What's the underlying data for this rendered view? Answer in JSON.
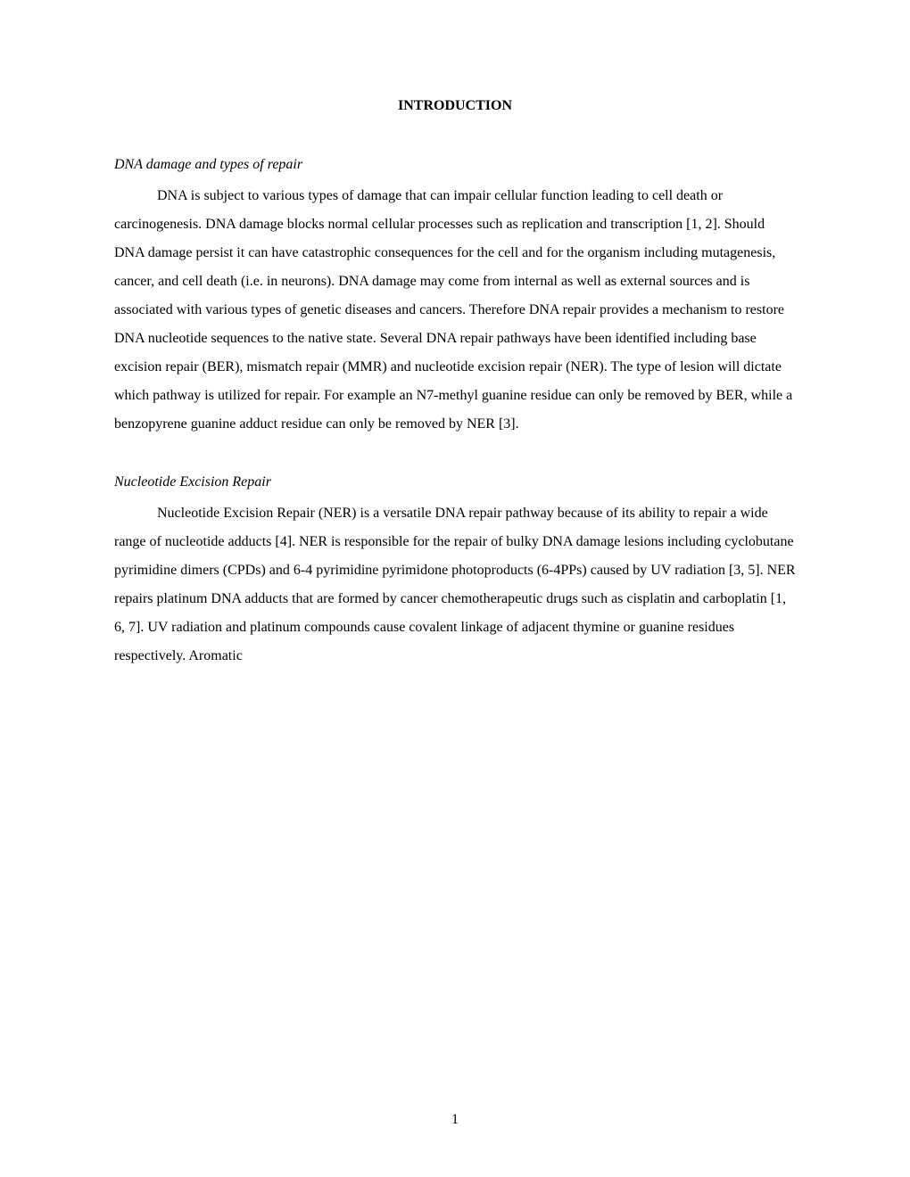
{
  "title": "INTRODUCTION",
  "sections": [
    {
      "heading": "DNA damage and types of repair",
      "paragraph": "DNA is subject to various types of damage that can impair cellular function leading to cell death or carcinogenesis.  DNA damage blocks normal cellular processes such as replication and transcription [1, 2].  Should DNA damage persist it can have catastrophic consequences for the cell and for the organism including mutagenesis, cancer, and cell death (i.e. in neurons).  DNA damage may come from internal as well as external sources and is associated with various types of genetic diseases and cancers.  Therefore DNA repair provides a mechanism to restore DNA nucleotide sequences to the native state.  Several DNA repair pathways have been identified including base excision repair (BER), mismatch repair (MMR) and nucleotide excision repair (NER).  The type of lesion will dictate which pathway is utilized for repair.  For example an N7-methyl guanine residue can only be removed by BER, while a benzopyrene guanine adduct residue can only be removed by NER [3]."
    },
    {
      "heading": "Nucleotide Excision Repair",
      "paragraph": " Nucleotide Excision Repair (NER) is a versatile DNA repair pathway because of its ability to repair a wide range of nucleotide adducts [4].  NER is responsible for the repair of bulky DNA damage lesions including cyclobutane pyrimidine dimers (CPDs) and 6-4 pyrimidine pyrimidone photoproducts (6-4PPs) caused by UV radiation [3, 5].  NER repairs platinum DNA adducts that are formed by cancer chemotherapeutic drugs such as cisplatin and carboplatin [1, 6, 7].  UV radiation and platinum compounds cause covalent linkage of adjacent thymine or guanine residues respectively.  Aromatic"
    }
  ],
  "page_number": "1",
  "styles": {
    "background_color": "#ffffff",
    "text_color": "#000000",
    "font_family": "Times New Roman",
    "title_fontsize": 16,
    "body_fontsize": 16,
    "line_height": 2.0,
    "text_indent": 48
  }
}
